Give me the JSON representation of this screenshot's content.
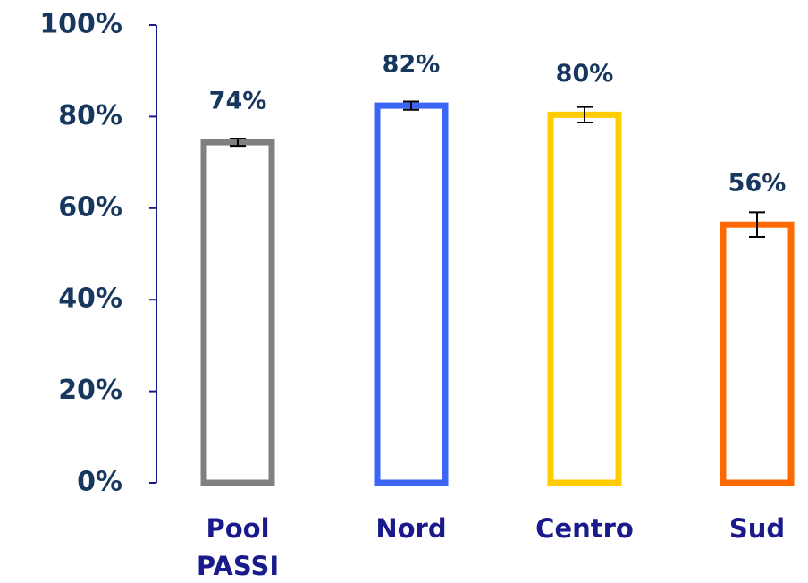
{
  "chart_data": {
    "type": "bar",
    "categories": [
      "Pool PASSI",
      "Nord",
      "Centro",
      "Sud"
    ],
    "values": [
      74.4,
      82.4,
      80.4,
      56.4
    ],
    "value_labels": [
      "74%",
      "82%",
      "80%",
      "56%"
    ],
    "errors": [
      0.8,
      0.9,
      1.7,
      2.7
    ],
    "colors": [
      "#808080",
      "#3b66f5",
      "#ffcc00",
      "#ff6a00"
    ],
    "ylim": [
      0,
      100
    ],
    "yticks": [
      {
        "value": 0,
        "label": "0%"
      },
      {
        "value": 20,
        "label": "20%"
      },
      {
        "value": 40,
        "label": "40%"
      },
      {
        "value": 60,
        "label": "60%"
      },
      {
        "value": 80,
        "label": "80%"
      },
      {
        "value": 100,
        "label": "100%"
      }
    ]
  }
}
